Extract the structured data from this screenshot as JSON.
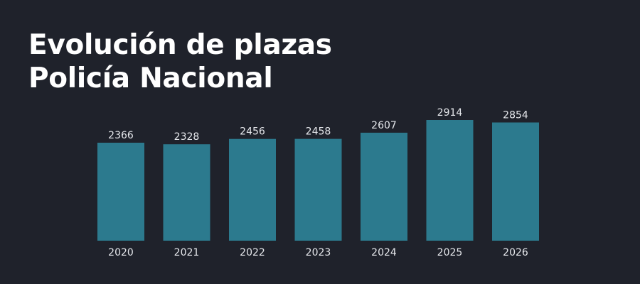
{
  "title": {
    "line1": "Evolución de plazas",
    "line2": "Policía Nacional"
  },
  "colors": {
    "background": "#1f222b",
    "bar": "#2c7a8e",
    "text": "#ffffff"
  },
  "chart_data": {
    "type": "bar",
    "title": "Evolución de plazas Policía Nacional",
    "categories": [
      "2020",
      "2021",
      "2022",
      "2023",
      "2024",
      "2025",
      "2026"
    ],
    "values": [
      2366,
      2328,
      2456,
      2458,
      2607,
      2914,
      2854
    ],
    "data_labels": true,
    "grid": false,
    "legend": "none",
    "xlabel": "",
    "ylabel": ""
  }
}
